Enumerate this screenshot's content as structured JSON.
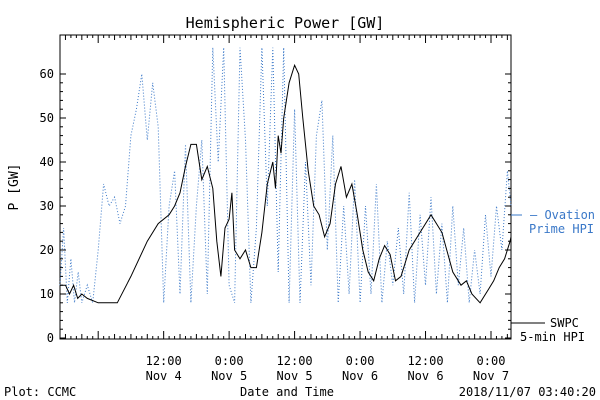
{
  "chart_data": {
    "type": "line",
    "title": "Hemispheric Power [GW]",
    "ylabel": "P [GW]",
    "xlabel": "Date and Time",
    "ylim": [
      0,
      68
    ],
    "yticks": [
      0,
      10,
      20,
      30,
      40,
      50,
      60
    ],
    "xlim": [
      "2018-11-03 17:00",
      "2018-11-07 03:40"
    ],
    "xticks": [
      {
        "time": "2018-11-04 12:00",
        "line1": "12:00",
        "line2": "Nov 4"
      },
      {
        "time": "2018-11-05 00:00",
        "line1": "0:00",
        "line2": "Nov 5"
      },
      {
        "time": "2018-11-05 12:00",
        "line1": "12:00",
        "line2": "Nov 5"
      },
      {
        "time": "2018-11-06 00:00",
        "line1": "0:00",
        "line2": "Nov 6"
      },
      {
        "time": "2018-11-06 12:00",
        "line1": "12:00",
        "line2": "Nov 6"
      },
      {
        "time": "2018-11-07 00:00",
        "line1": "0:00",
        "line2": "Nov 7"
      }
    ],
    "series": [
      {
        "name": "SWPC",
        "style": "solid",
        "color": "#000000",
        "points": [
          [
            "2018-11-03 17:00",
            12
          ],
          [
            "2018-11-03 18:00",
            12
          ],
          [
            "2018-11-03 18:45",
            10
          ],
          [
            "2018-11-03 19:30",
            12
          ],
          [
            "2018-11-03 20:15",
            9
          ],
          [
            "2018-11-03 21:00",
            10
          ],
          [
            "2018-11-03 22:00",
            9
          ],
          [
            "2018-11-04 00:00",
            8
          ],
          [
            "2018-11-04 02:00",
            8
          ],
          [
            "2018-11-04 03:30",
            8
          ],
          [
            "2018-11-04 06:00",
            14
          ],
          [
            "2018-11-04 09:00",
            22
          ],
          [
            "2018-11-04 11:00",
            26
          ],
          [
            "2018-11-04 13:00",
            28
          ],
          [
            "2018-11-04 14:00",
            30
          ],
          [
            "2018-11-04 15:00",
            33
          ],
          [
            "2018-11-04 16:00",
            39
          ],
          [
            "2018-11-04 17:00",
            44
          ],
          [
            "2018-11-04 18:00",
            44
          ],
          [
            "2018-11-04 19:00",
            36
          ],
          [
            "2018-11-04 20:00",
            39
          ],
          [
            "2018-11-04 21:00",
            34
          ],
          [
            "2018-11-04 21:45",
            22
          ],
          [
            "2018-11-04 22:30",
            14
          ],
          [
            "2018-11-04 23:15",
            25
          ],
          [
            "2018-11-05 00:00",
            27
          ],
          [
            "2018-11-05 00:30",
            33
          ],
          [
            "2018-11-05 01:00",
            20
          ],
          [
            "2018-11-05 02:00",
            18
          ],
          [
            "2018-11-05 03:00",
            20
          ],
          [
            "2018-11-05 04:00",
            16
          ],
          [
            "2018-11-05 05:00",
            16
          ],
          [
            "2018-11-05 06:00",
            24
          ],
          [
            "2018-11-05 07:00",
            35
          ],
          [
            "2018-11-05 08:00",
            40
          ],
          [
            "2018-11-05 08:30",
            34
          ],
          [
            "2018-11-05 09:00",
            46
          ],
          [
            "2018-11-05 09:30",
            42
          ],
          [
            "2018-11-05 10:00",
            50
          ],
          [
            "2018-11-05 11:00",
            58
          ],
          [
            "2018-11-05 12:00",
            62
          ],
          [
            "2018-11-05 12:45",
            60
          ],
          [
            "2018-11-05 13:30",
            50
          ],
          [
            "2018-11-05 14:30",
            38
          ],
          [
            "2018-11-05 15:30",
            30
          ],
          [
            "2018-11-05 16:30",
            28
          ],
          [
            "2018-11-05 17:30",
            23
          ],
          [
            "2018-11-05 18:30",
            26
          ],
          [
            "2018-11-05 19:30",
            35
          ],
          [
            "2018-11-05 20:30",
            39
          ],
          [
            "2018-11-05 21:30",
            32
          ],
          [
            "2018-11-05 22:30",
            35
          ],
          [
            "2018-11-05 23:30",
            28
          ],
          [
            "2018-11-06 00:30",
            20
          ],
          [
            "2018-11-06 01:30",
            15
          ],
          [
            "2018-11-06 02:30",
            13
          ],
          [
            "2018-11-06 03:30",
            18
          ],
          [
            "2018-11-06 04:30",
            21
          ],
          [
            "2018-11-06 05:30",
            19
          ],
          [
            "2018-11-06 06:30",
            13
          ],
          [
            "2018-11-06 07:30",
            14
          ],
          [
            "2018-11-06 09:00",
            20
          ],
          [
            "2018-11-06 11:00",
            24
          ],
          [
            "2018-11-06 13:00",
            28
          ],
          [
            "2018-11-06 15:00",
            24
          ],
          [
            "2018-11-06 17:00",
            15
          ],
          [
            "2018-11-06 18:30",
            12
          ],
          [
            "2018-11-06 19:30",
            13
          ],
          [
            "2018-11-06 20:30",
            10
          ],
          [
            "2018-11-06 22:00",
            8
          ],
          [
            "2018-11-06 23:30",
            11
          ],
          [
            "2018-11-07 00:30",
            13
          ],
          [
            "2018-11-07 01:30",
            16
          ],
          [
            "2018-11-07 02:30",
            18
          ],
          [
            "2018-11-07 03:30",
            22
          ],
          [
            "2018-11-07 03:40",
            23
          ]
        ]
      },
      {
        "name": "Ovation Prime HPI",
        "style": "dotted",
        "color": "#3a78c8",
        "points": [
          [
            "2018-11-03 17:00",
            12
          ],
          [
            "2018-11-03 17:40",
            25
          ],
          [
            "2018-11-03 18:20",
            8
          ],
          [
            "2018-11-03 19:00",
            18
          ],
          [
            "2018-11-03 19:40",
            8
          ],
          [
            "2018-11-03 20:20",
            15
          ],
          [
            "2018-11-03 21:00",
            8
          ],
          [
            "2018-11-03 22:00",
            12
          ],
          [
            "2018-11-03 23:00",
            8
          ],
          [
            "2018-11-04 00:00",
            20
          ],
          [
            "2018-11-04 01:00",
            35
          ],
          [
            "2018-11-04 02:00",
            30
          ],
          [
            "2018-11-04 03:00",
            32
          ],
          [
            "2018-11-04 04:00",
            26
          ],
          [
            "2018-11-04 05:00",
            30
          ],
          [
            "2018-11-04 06:00",
            46
          ],
          [
            "2018-11-04 07:00",
            52
          ],
          [
            "2018-11-04 08:00",
            60
          ],
          [
            "2018-11-04 09:00",
            45
          ],
          [
            "2018-11-04 10:00",
            58
          ],
          [
            "2018-11-04 11:00",
            48
          ],
          [
            "2018-11-04 12:00",
            8
          ],
          [
            "2018-11-04 13:00",
            30
          ],
          [
            "2018-11-04 14:00",
            38
          ],
          [
            "2018-11-04 15:00",
            10
          ],
          [
            "2018-11-04 16:00",
            44
          ],
          [
            "2018-11-04 17:00",
            8
          ],
          [
            "2018-11-04 18:00",
            30
          ],
          [
            "2018-11-04 19:00",
            45
          ],
          [
            "2018-11-04 20:00",
            10
          ],
          [
            "2018-11-04 21:00",
            66
          ],
          [
            "2018-11-04 22:00",
            40
          ],
          [
            "2018-11-04 23:00",
            66
          ],
          [
            "2018-11-05 00:00",
            12
          ],
          [
            "2018-11-05 01:00",
            8
          ],
          [
            "2018-11-05 02:00",
            66
          ],
          [
            "2018-11-05 03:00",
            45
          ],
          [
            "2018-11-05 04:00",
            8
          ],
          [
            "2018-11-05 05:00",
            25
          ],
          [
            "2018-11-05 06:00",
            66
          ],
          [
            "2018-11-05 07:00",
            30
          ],
          [
            "2018-11-05 08:00",
            66
          ],
          [
            "2018-11-05 09:00",
            15
          ],
          [
            "2018-11-05 10:00",
            66
          ],
          [
            "2018-11-05 11:00",
            8
          ],
          [
            "2018-11-05 12:00",
            52
          ],
          [
            "2018-11-05 13:00",
            8
          ],
          [
            "2018-11-05 14:00",
            40
          ],
          [
            "2018-11-05 15:00",
            12
          ],
          [
            "2018-11-05 16:00",
            46
          ],
          [
            "2018-11-05 17:00",
            54
          ],
          [
            "2018-11-05 18:00",
            20
          ],
          [
            "2018-11-05 19:00",
            46
          ],
          [
            "2018-11-05 20:00",
            8
          ],
          [
            "2018-11-05 21:00",
            30
          ],
          [
            "2018-11-05 22:00",
            10
          ],
          [
            "2018-11-05 23:00",
            36
          ],
          [
            "2018-11-06 00:00",
            8
          ],
          [
            "2018-11-06 01:00",
            30
          ],
          [
            "2018-11-06 02:00",
            10
          ],
          [
            "2018-11-06 03:00",
            35
          ],
          [
            "2018-11-06 04:00",
            8
          ],
          [
            "2018-11-06 05:00",
            22
          ],
          [
            "2018-11-06 06:00",
            12
          ],
          [
            "2018-11-06 07:00",
            25
          ],
          [
            "2018-11-06 08:00",
            10
          ],
          [
            "2018-11-06 09:00",
            33
          ],
          [
            "2018-11-06 10:00",
            8
          ],
          [
            "2018-11-06 11:00",
            28
          ],
          [
            "2018-11-06 12:00",
            12
          ],
          [
            "2018-11-06 13:00",
            32
          ],
          [
            "2018-11-06 14:00",
            10
          ],
          [
            "2018-11-06 15:00",
            26
          ],
          [
            "2018-11-06 16:00",
            8
          ],
          [
            "2018-11-06 17:00",
            30
          ],
          [
            "2018-11-06 18:00",
            12
          ],
          [
            "2018-11-06 19:00",
            25
          ],
          [
            "2018-11-06 20:00",
            8
          ],
          [
            "2018-11-06 21:00",
            20
          ],
          [
            "2018-11-06 22:00",
            10
          ],
          [
            "2018-11-06 23:00",
            28
          ],
          [
            "2018-11-07 00:00",
            14
          ],
          [
            "2018-11-07 01:00",
            30
          ],
          [
            "2018-11-07 02:00",
            20
          ],
          [
            "2018-11-07 03:00",
            38
          ],
          [
            "2018-11-07 03:40",
            30
          ]
        ]
      }
    ],
    "legend": [
      {
        "series": "Ovation Prime HPI",
        "line1": "– Ovation",
        "line2": "Prime HPI",
        "color": "#3a78c8"
      },
      {
        "series": "SWPC",
        "line1": "SWPC",
        "line2": "5-min HPI",
        "color": "#000000"
      }
    ],
    "legend_placement": "right"
  },
  "footer": {
    "left": "Plot: CCMC",
    "center": "Date and Time",
    "right": "2018/11/07 03:40:20"
  }
}
